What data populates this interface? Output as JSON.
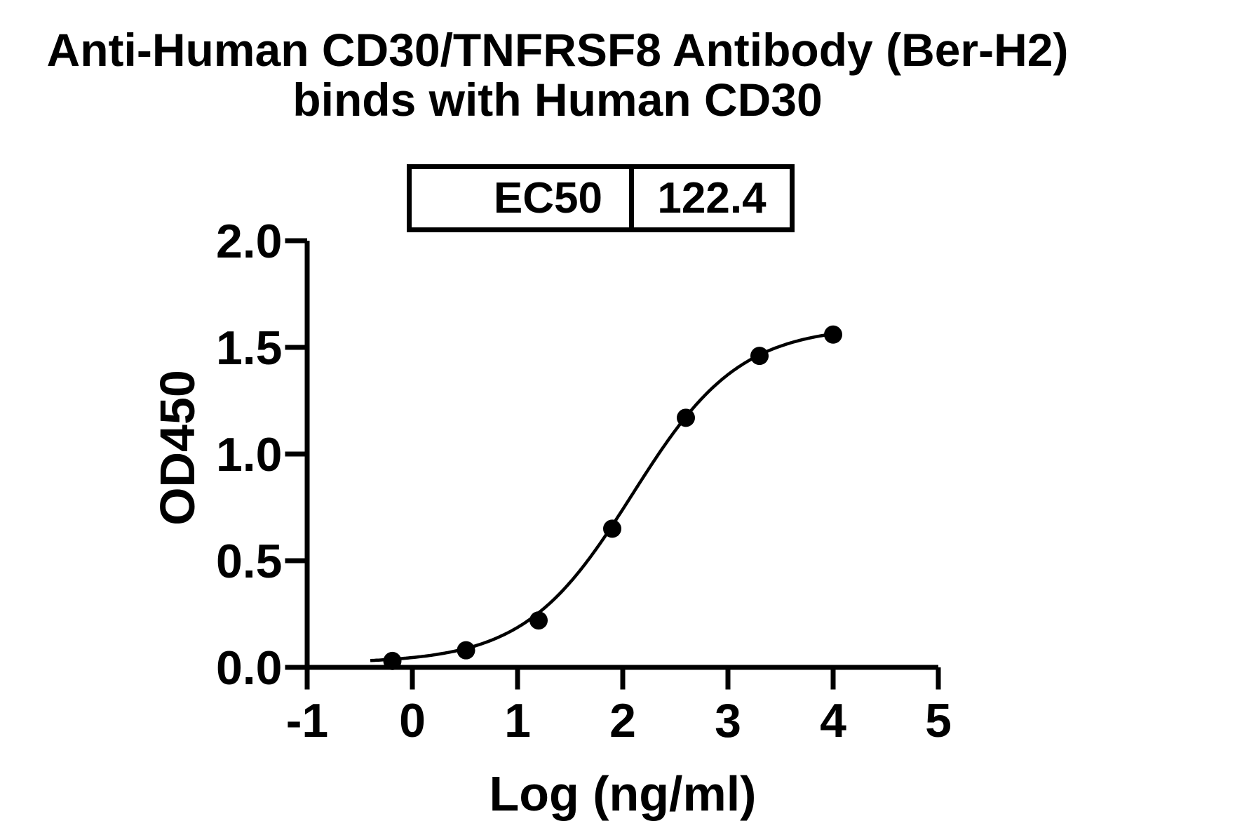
{
  "chart": {
    "title_line1": "Anti-Human CD30/TNFRSF8 Antibody (Ber-H2)",
    "title_line2": "binds with Human CD30",
    "xlabel": "Log (ng/ml)",
    "ylabel": "OD450",
    "ec50_label": "EC50",
    "ec50_value": "122.4"
  },
  "chart_data": {
    "type": "scatter",
    "title": "Anti-Human CD30/TNFRSF8 Antibody (Ber-H2) binds with Human CD30",
    "xlabel": "Log (ng/ml)",
    "ylabel": "OD450",
    "x": [
      -0.19,
      0.51,
      1.2,
      1.9,
      2.6,
      3.3,
      4.0
    ],
    "y": [
      0.03,
      0.08,
      0.22,
      0.65,
      1.17,
      1.46,
      1.56
    ],
    "xlim": [
      -1,
      5
    ],
    "ylim": [
      0,
      2
    ],
    "xticks": [
      -1,
      0,
      1,
      2,
      3,
      4,
      5
    ],
    "xtick_labels": [
      "-1",
      "0",
      "1",
      "2",
      "3",
      "4",
      "5"
    ],
    "yticks": [
      0,
      0.5,
      1,
      1.5,
      2
    ],
    "ytick_labels": [
      "0.0",
      "0.5",
      "1.0",
      "1.5",
      "2.0"
    ],
    "grid": false,
    "legend": "none",
    "ec50": 122.4,
    "fit": {
      "model": "4PL sigmoidal dose-response",
      "bottom": 0.02,
      "top": 1.6,
      "log_ec50": 2.09,
      "hill_slope": 0.85,
      "curve_range": [
        -0.4,
        4.0
      ]
    },
    "style": {
      "marker_color": "#000000",
      "line_color": "#000000",
      "axis_color": "#000000",
      "background": "#ffffff",
      "marker_radius_px": 13
    }
  }
}
